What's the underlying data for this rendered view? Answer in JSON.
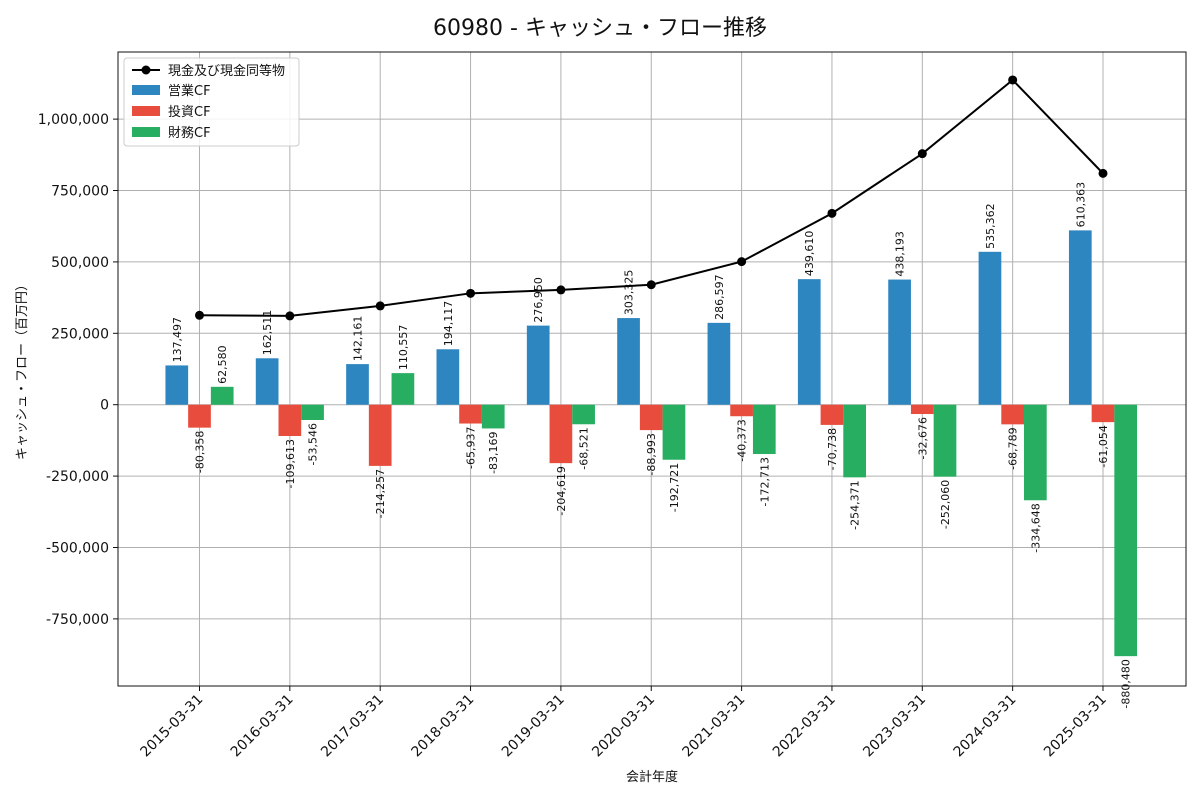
{
  "chart_data": {
    "type": "bar",
    "title": "60980 - キャッシュ・フロー推移",
    "xlabel": "会計年度",
    "ylabel": "キャッシュ・フロー（百万円）",
    "categories": [
      "2015-03-31",
      "2016-03-31",
      "2017-03-31",
      "2018-03-31",
      "2019-03-31",
      "2020-03-31",
      "2021-03-31",
      "2022-03-31",
      "2023-03-31",
      "2024-03-31",
      "2025-03-31"
    ],
    "ylim": [
      -985000,
      1235000
    ],
    "yticks": [
      -750000,
      -500000,
      -250000,
      0,
      250000,
      500000,
      750000,
      1000000
    ],
    "ytick_labels": [
      "-750,000",
      "-500,000",
      "-250,000",
      "0",
      "250,000",
      "500,000",
      "750,000",
      "1,000,000"
    ],
    "grid": true,
    "legend_position": "top-left",
    "series": [
      {
        "name": "営業CF",
        "kind": "bar",
        "color": "#2e86c1",
        "values": [
          137497,
          162511,
          142161,
          194117,
          276950,
          303325,
          286597,
          439610,
          438193,
          535362,
          610363
        ],
        "labels": [
          "137,497",
          "162,511",
          "142,161",
          "194,117",
          "276,950",
          "303,325",
          "286,597",
          "439,610",
          "438,193",
          "535,362",
          "610,363"
        ]
      },
      {
        "name": "投資CF",
        "kind": "bar",
        "color": "#e74c3c",
        "values": [
          -80358,
          -109613,
          -214257,
          -65937,
          -204619,
          -88993,
          -40373,
          -70738,
          -32676,
          -68789,
          -61054
        ],
        "labels": [
          "-80,358",
          "-109,613",
          "-214,257",
          "-65,937",
          "-204,619",
          "-88,993",
          "-40,373",
          "-70,738",
          "-32,676",
          "-68,789",
          "-61,054"
        ]
      },
      {
        "name": "財務CF",
        "kind": "bar",
        "color": "#27ae60",
        "values": [
          62580,
          -53546,
          110557,
          -83169,
          -68521,
          -192721,
          -172713,
          -254371,
          -252060,
          -334648,
          -880480
        ],
        "labels": [
          "62,580",
          "-53,546",
          "110,557",
          "-83,169",
          "-68,521",
          "-192,721",
          "-172,713",
          "-254,371",
          "-252,060",
          "-334,648",
          "-880,480"
        ]
      },
      {
        "name": "現金及び現金同等物",
        "kind": "line",
        "color": "#000000",
        "values": [
          313000,
          311000,
          346000,
          390000,
          402000,
          420000,
          501000,
          670000,
          879000,
          1137000,
          810000
        ]
      }
    ]
  }
}
